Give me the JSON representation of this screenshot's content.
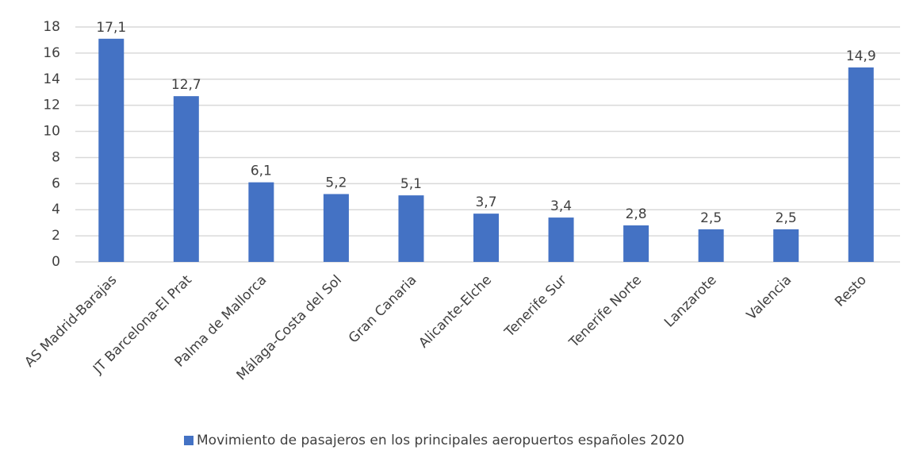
{
  "chart_data": {
    "type": "bar",
    "categories": [
      "AS Madrid-Barajas",
      "JT Barcelona-El Prat",
      "Palma de Mallorca",
      "Málaga-Costa del Sol",
      "Gran Canaria",
      "Alicante-Elche",
      "Tenerife Sur",
      "Tenerife Norte",
      "Lanzarote",
      "Valencia",
      "Resto"
    ],
    "series": [
      {
        "name": "Movimiento de pasajeros en los principales aeropuertos españoles 2020",
        "color": "#4472c4",
        "values": [
          17.1,
          12.7,
          6.1,
          5.2,
          5.1,
          3.7,
          3.4,
          2.8,
          2.5,
          2.5,
          14.9
        ],
        "value_labels": [
          "17,1",
          "12,7",
          "6,1",
          "5,2",
          "5,1",
          "3,7",
          "3,4",
          "2,8",
          "2,5",
          "2,5",
          "14,9"
        ]
      }
    ],
    "ylim": [
      0,
      18
    ],
    "yticks": [
      0,
      2,
      4,
      6,
      8,
      10,
      12,
      14,
      16,
      18
    ],
    "grid": true,
    "legend": "bottom"
  }
}
